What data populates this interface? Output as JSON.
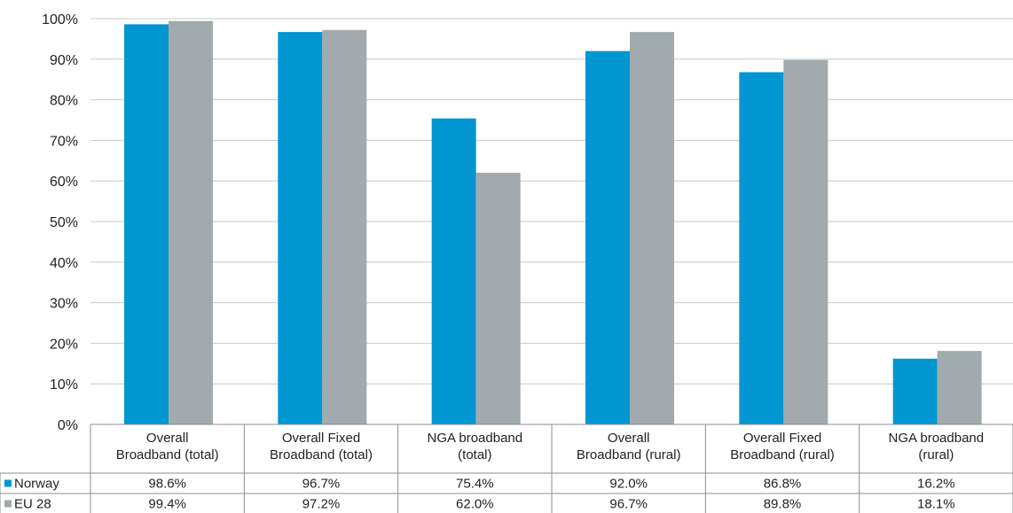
{
  "chart_data": {
    "type": "bar",
    "categories": [
      [
        "Overall",
        "Broadband (total)"
      ],
      [
        "Overall Fixed",
        "Broadband (total)"
      ],
      [
        "NGA broadband",
        "(total)"
      ],
      [
        "Overall",
        "Broadband (rural)"
      ],
      [
        "Overall Fixed",
        "Broadband (rural)"
      ],
      [
        "NGA broadband",
        "(rural)"
      ]
    ],
    "series": [
      {
        "name": "Norway",
        "color": "#0096d2",
        "values": [
          98.6,
          96.7,
          75.4,
          92.0,
          86.8,
          16.2
        ],
        "labels": [
          "98.6%",
          "96.7%",
          "75.4%",
          "92.0%",
          "86.8%",
          "16.2%"
        ]
      },
      {
        "name": "EU 28",
        "color": "#a2aaad",
        "values": [
          99.4,
          97.2,
          62.0,
          96.7,
          89.8,
          18.1
        ],
        "labels": [
          "99.4%",
          "97.2%",
          "62.0%",
          "96.7%",
          "89.8%",
          "18.1%"
        ]
      }
    ],
    "yticks": [
      "0%",
      "10%",
      "20%",
      "30%",
      "40%",
      "50%",
      "60%",
      "70%",
      "80%",
      "90%",
      "100%"
    ],
    "ylim": [
      0,
      100
    ],
    "grid": true,
    "legend": "data-table-left",
    "title": "",
    "xlabel": "",
    "ylabel": ""
  }
}
